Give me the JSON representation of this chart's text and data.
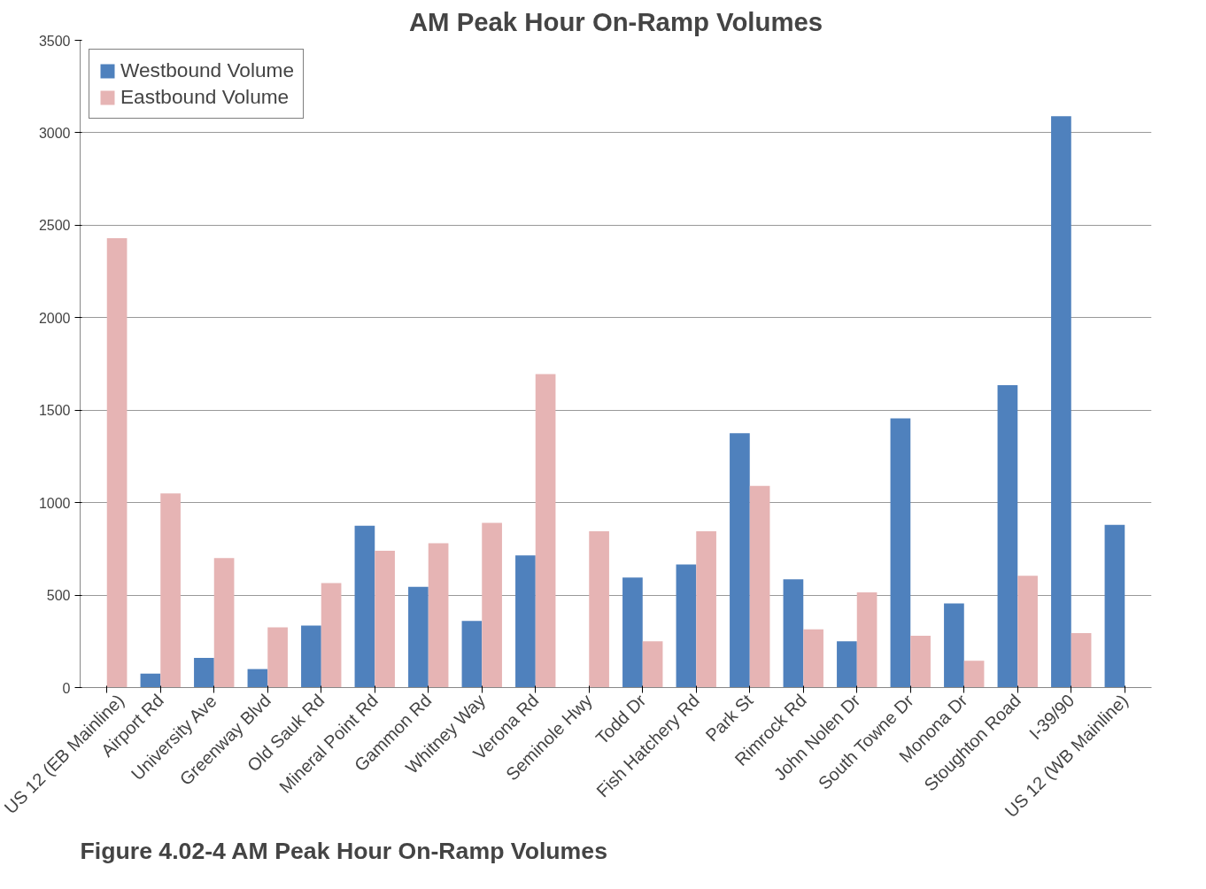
{
  "chart_data": {
    "type": "bar",
    "title": "AM Peak Hour On-Ramp Volumes",
    "categories": [
      "US 12 (EB Mainline)",
      "Airport Rd",
      "University Ave",
      "Greenway Blvd",
      "Old Sauk Rd",
      "Mineral Point Rd",
      "Gammon Rd",
      "Whitney Way",
      "Verona Rd",
      "Seminole Hwy",
      "Todd Dr",
      "Fish Hatchery Rd",
      "Park St",
      "Rimrock Rd",
      "John Nolen Dr",
      "South Towne Dr",
      "Monona Dr",
      "Stoughton Road",
      "I-39/90",
      "US 12 (WB Mainline)"
    ],
    "series": [
      {
        "name": "Westbound Volume",
        "color": "#4f81bd",
        "values": [
          null,
          75,
          160,
          100,
          335,
          875,
          545,
          360,
          715,
          null,
          595,
          665,
          1375,
          585,
          250,
          1455,
          455,
          1635,
          3090,
          880
        ]
      },
      {
        "name": "Eastbound Volume",
        "color": "#e6b4b4",
        "values": [
          2430,
          1050,
          700,
          325,
          565,
          740,
          780,
          890,
          1695,
          845,
          250,
          845,
          1090,
          315,
          515,
          280,
          145,
          605,
          295,
          null
        ]
      }
    ],
    "ylim": [
      0,
      3500
    ],
    "yticks": [
      0,
      500,
      1000,
      1500,
      2000,
      2500,
      3000,
      3500
    ],
    "grid": "y",
    "legend": "top left",
    "annotations": [
      "Figure 4.02-4  AM Peak Hour On-Ramp Volumes"
    ]
  }
}
